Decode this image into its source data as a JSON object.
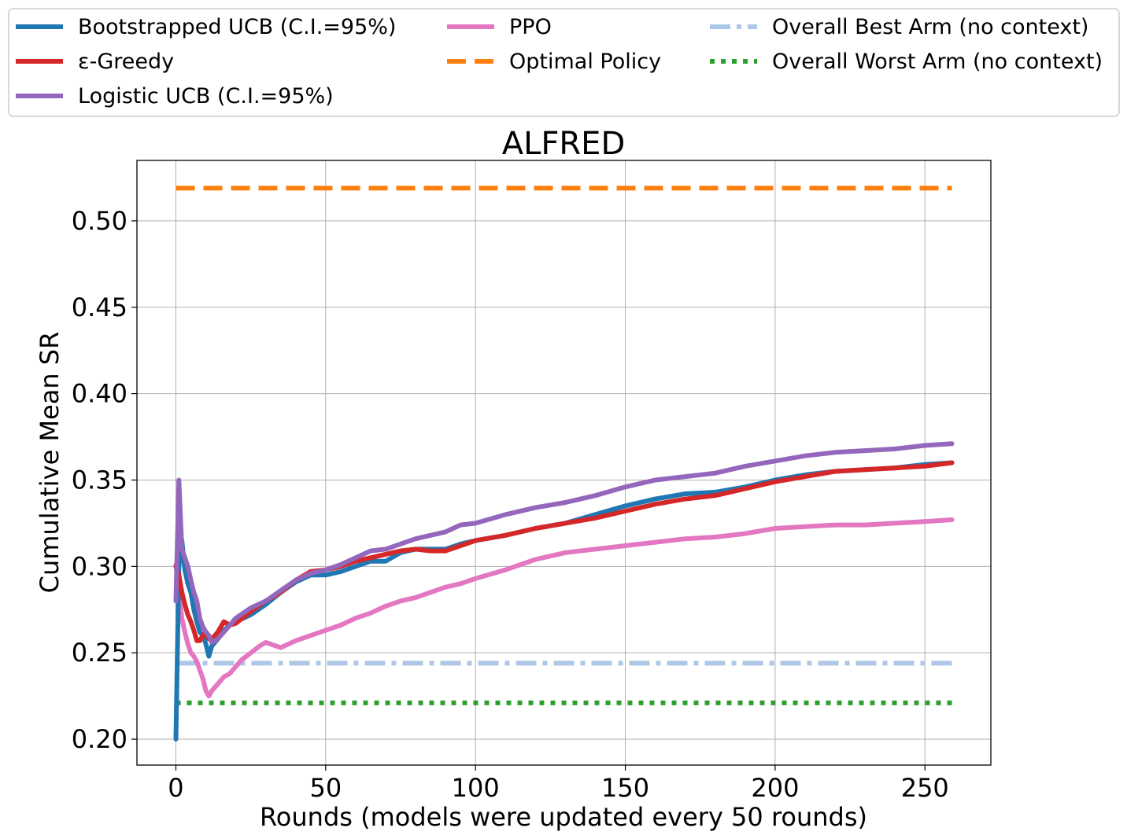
{
  "chart_data": {
    "type": "line",
    "title": "ALFRED",
    "xlabel": "Rounds (models were updated every 50 rounds)",
    "ylabel": "Cumulative Mean SR",
    "xlim": [
      -13,
      272
    ],
    "ylim": [
      0.185,
      0.535
    ],
    "xticks": [
      0,
      50,
      100,
      150,
      200,
      250
    ],
    "xtick_labels": [
      "0",
      "50",
      "100",
      "150",
      "200",
      "250"
    ],
    "yticks": [
      0.2,
      0.25,
      0.3,
      0.35,
      0.4,
      0.45,
      0.5
    ],
    "ytick_labels": [
      "0.20",
      "0.25",
      "0.30",
      "0.35",
      "0.40",
      "0.45",
      "0.50"
    ],
    "grid": true,
    "legend_position": "top",
    "series": [
      {
        "name": "Bootstrapped UCB (C.I.=95%)",
        "color": "#1f77b4",
        "style": "solid",
        "x": [
          0,
          1,
          2,
          3,
          4,
          5,
          6,
          7,
          8,
          9,
          10,
          11,
          12,
          14,
          16,
          18,
          20,
          25,
          30,
          35,
          40,
          45,
          50,
          55,
          60,
          65,
          70,
          75,
          80,
          85,
          90,
          95,
          100,
          110,
          120,
          130,
          140,
          150,
          160,
          170,
          180,
          190,
          200,
          210,
          220,
          230,
          240,
          250,
          259
        ],
        "y": [
          0.2,
          0.3,
          0.315,
          0.298,
          0.29,
          0.285,
          0.275,
          0.268,
          0.262,
          0.26,
          0.255,
          0.248,
          0.254,
          0.258,
          0.263,
          0.266,
          0.268,
          0.272,
          0.278,
          0.285,
          0.291,
          0.295,
          0.295,
          0.297,
          0.3,
          0.303,
          0.303,
          0.308,
          0.31,
          0.31,
          0.31,
          0.313,
          0.315,
          0.318,
          0.322,
          0.325,
          0.33,
          0.335,
          0.339,
          0.342,
          0.343,
          0.346,
          0.35,
          0.353,
          0.355,
          0.356,
          0.357,
          0.359,
          0.36
        ]
      },
      {
        "name": "ε-Greedy",
        "color": "#d62728",
        "style": "solid",
        "x": [
          0,
          1,
          2,
          3,
          4,
          5,
          6,
          7,
          8,
          9,
          10,
          11,
          12,
          14,
          16,
          18,
          20,
          25,
          30,
          35,
          40,
          45,
          50,
          55,
          60,
          65,
          70,
          75,
          80,
          85,
          90,
          95,
          100,
          110,
          120,
          130,
          140,
          150,
          160,
          170,
          180,
          190,
          200,
          210,
          220,
          230,
          240,
          250,
          259
        ],
        "y": [
          0.3,
          0.295,
          0.285,
          0.278,
          0.272,
          0.268,
          0.263,
          0.257,
          0.257,
          0.26,
          0.262,
          0.258,
          0.258,
          0.262,
          0.268,
          0.266,
          0.267,
          0.274,
          0.28,
          0.285,
          0.292,
          0.297,
          0.298,
          0.3,
          0.303,
          0.305,
          0.307,
          0.309,
          0.31,
          0.309,
          0.309,
          0.312,
          0.315,
          0.318,
          0.322,
          0.325,
          0.328,
          0.332,
          0.336,
          0.339,
          0.341,
          0.345,
          0.349,
          0.352,
          0.355,
          0.356,
          0.357,
          0.358,
          0.36
        ]
      },
      {
        "name": "Logistic UCB (C.I.=95%)",
        "color": "#9467bd",
        "style": "solid",
        "x": [
          0,
          1,
          2,
          3,
          4,
          5,
          6,
          7,
          8,
          9,
          10,
          11,
          12,
          14,
          16,
          18,
          20,
          25,
          30,
          35,
          40,
          45,
          50,
          55,
          60,
          65,
          70,
          75,
          80,
          85,
          90,
          95,
          100,
          110,
          120,
          130,
          140,
          150,
          160,
          170,
          180,
          190,
          200,
          210,
          220,
          230,
          240,
          250,
          259
        ],
        "y": [
          0.28,
          0.35,
          0.31,
          0.305,
          0.3,
          0.292,
          0.285,
          0.28,
          0.27,
          0.265,
          0.262,
          0.26,
          0.256,
          0.258,
          0.262,
          0.266,
          0.27,
          0.276,
          0.28,
          0.286,
          0.292,
          0.296,
          0.298,
          0.301,
          0.305,
          0.309,
          0.31,
          0.313,
          0.316,
          0.318,
          0.32,
          0.324,
          0.325,
          0.33,
          0.334,
          0.337,
          0.341,
          0.346,
          0.35,
          0.352,
          0.354,
          0.358,
          0.361,
          0.364,
          0.366,
          0.367,
          0.368,
          0.37,
          0.371
        ]
      },
      {
        "name": "PPO",
        "color": "#e377c2",
        "style": "solid",
        "x": [
          0,
          1,
          2,
          3,
          4,
          5,
          6,
          7,
          8,
          9,
          10,
          11,
          12,
          14,
          16,
          18,
          20,
          22,
          25,
          28,
          30,
          35,
          40,
          45,
          50,
          55,
          60,
          65,
          70,
          75,
          80,
          85,
          90,
          95,
          100,
          110,
          120,
          130,
          140,
          150,
          160,
          170,
          180,
          190,
          200,
          210,
          220,
          230,
          240,
          250,
          259
        ],
        "y": [
          0.301,
          0.285,
          0.27,
          0.262,
          0.255,
          0.25,
          0.248,
          0.245,
          0.24,
          0.235,
          0.228,
          0.225,
          0.228,
          0.232,
          0.236,
          0.238,
          0.242,
          0.246,
          0.25,
          0.254,
          0.256,
          0.253,
          0.257,
          0.26,
          0.263,
          0.266,
          0.27,
          0.273,
          0.277,
          0.28,
          0.282,
          0.285,
          0.288,
          0.29,
          0.293,
          0.298,
          0.304,
          0.308,
          0.31,
          0.312,
          0.314,
          0.316,
          0.317,
          0.319,
          0.322,
          0.323,
          0.324,
          0.324,
          0.325,
          0.326,
          0.327
        ]
      },
      {
        "name": "Optimal Policy",
        "color": "#ff7f0e",
        "style": "dashed",
        "x": [
          0,
          259
        ],
        "y": [
          0.519,
          0.519
        ]
      },
      {
        "name": "Overall Best Arm (no context)",
        "color": "#aec7e8",
        "style": "dashdot",
        "x": [
          0,
          259
        ],
        "y": [
          0.244,
          0.244
        ]
      },
      {
        "name": "Overall Worst Arm (no context)",
        "color": "#2ca02c",
        "style": "dotted",
        "x": [
          0,
          259
        ],
        "y": [
          0.221,
          0.221
        ]
      }
    ]
  }
}
